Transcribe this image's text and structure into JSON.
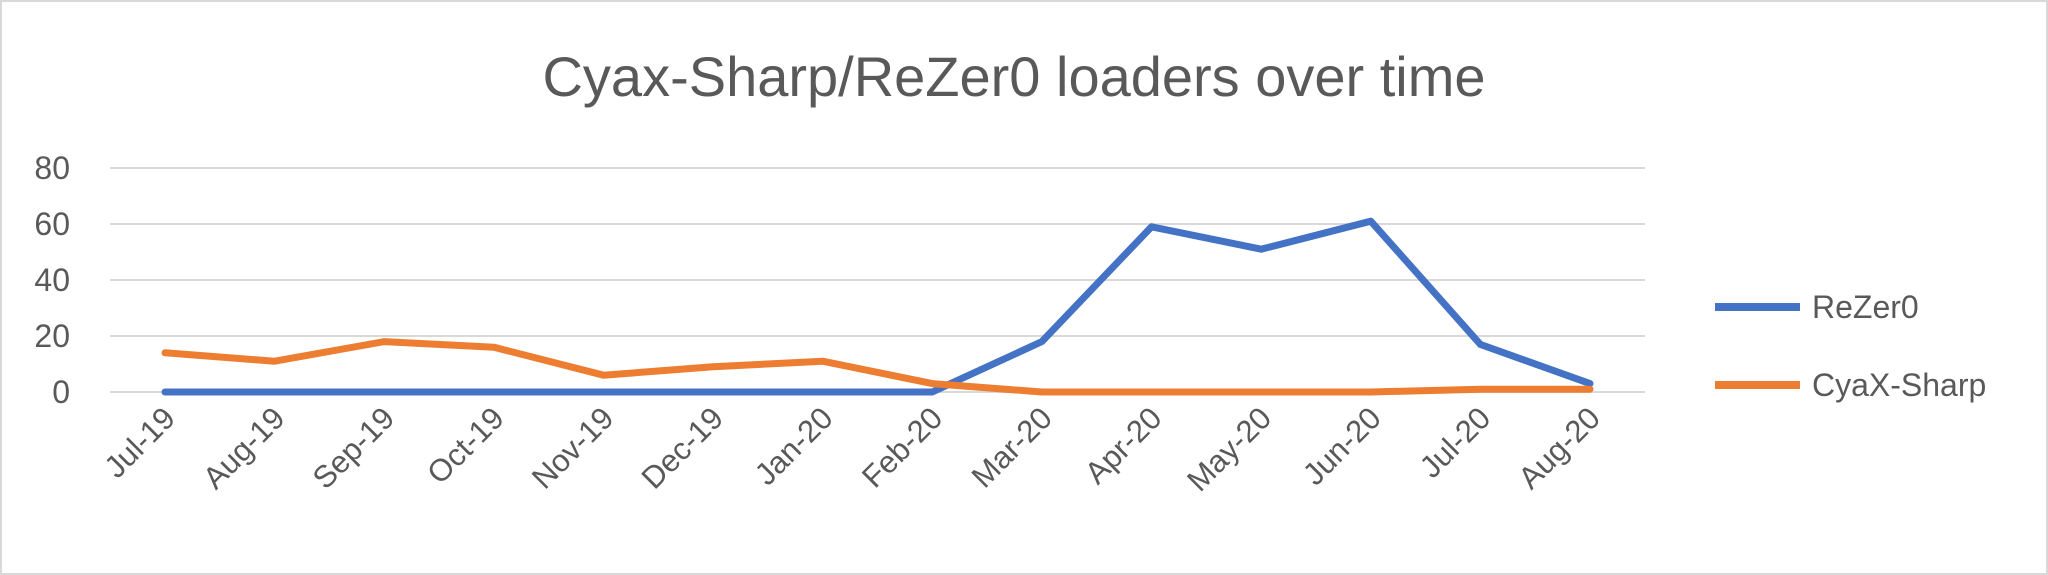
{
  "chart_data": {
    "type": "line",
    "title": "Cyax-Sharp/ReZer0 loaders over time",
    "xlabel": "",
    "ylabel": "",
    "categories": [
      "Jul-19",
      "Aug-19",
      "Sep-19",
      "Oct-19",
      "Nov-19",
      "Dec-19",
      "Jan-20",
      "Feb-20",
      "Mar-20",
      "Apr-20",
      "May-20",
      "Jun-20",
      "Jul-20",
      "Aug-20"
    ],
    "ylim": [
      0,
      80
    ],
    "yticks": [
      0,
      20,
      40,
      60,
      80
    ],
    "grid": true,
    "legend_position": "right",
    "series": [
      {
        "name": "ReZer0",
        "color": "#4472c4",
        "values": [
          0,
          0,
          0,
          0,
          0,
          0,
          0,
          0,
          18,
          59,
          51,
          61,
          17,
          3
        ]
      },
      {
        "name": "CyaX-Sharp",
        "color": "#ed7d31",
        "values": [
          14,
          11,
          18,
          16,
          6,
          9,
          11,
          3,
          0,
          0,
          0,
          0,
          1,
          1
        ]
      }
    ]
  }
}
